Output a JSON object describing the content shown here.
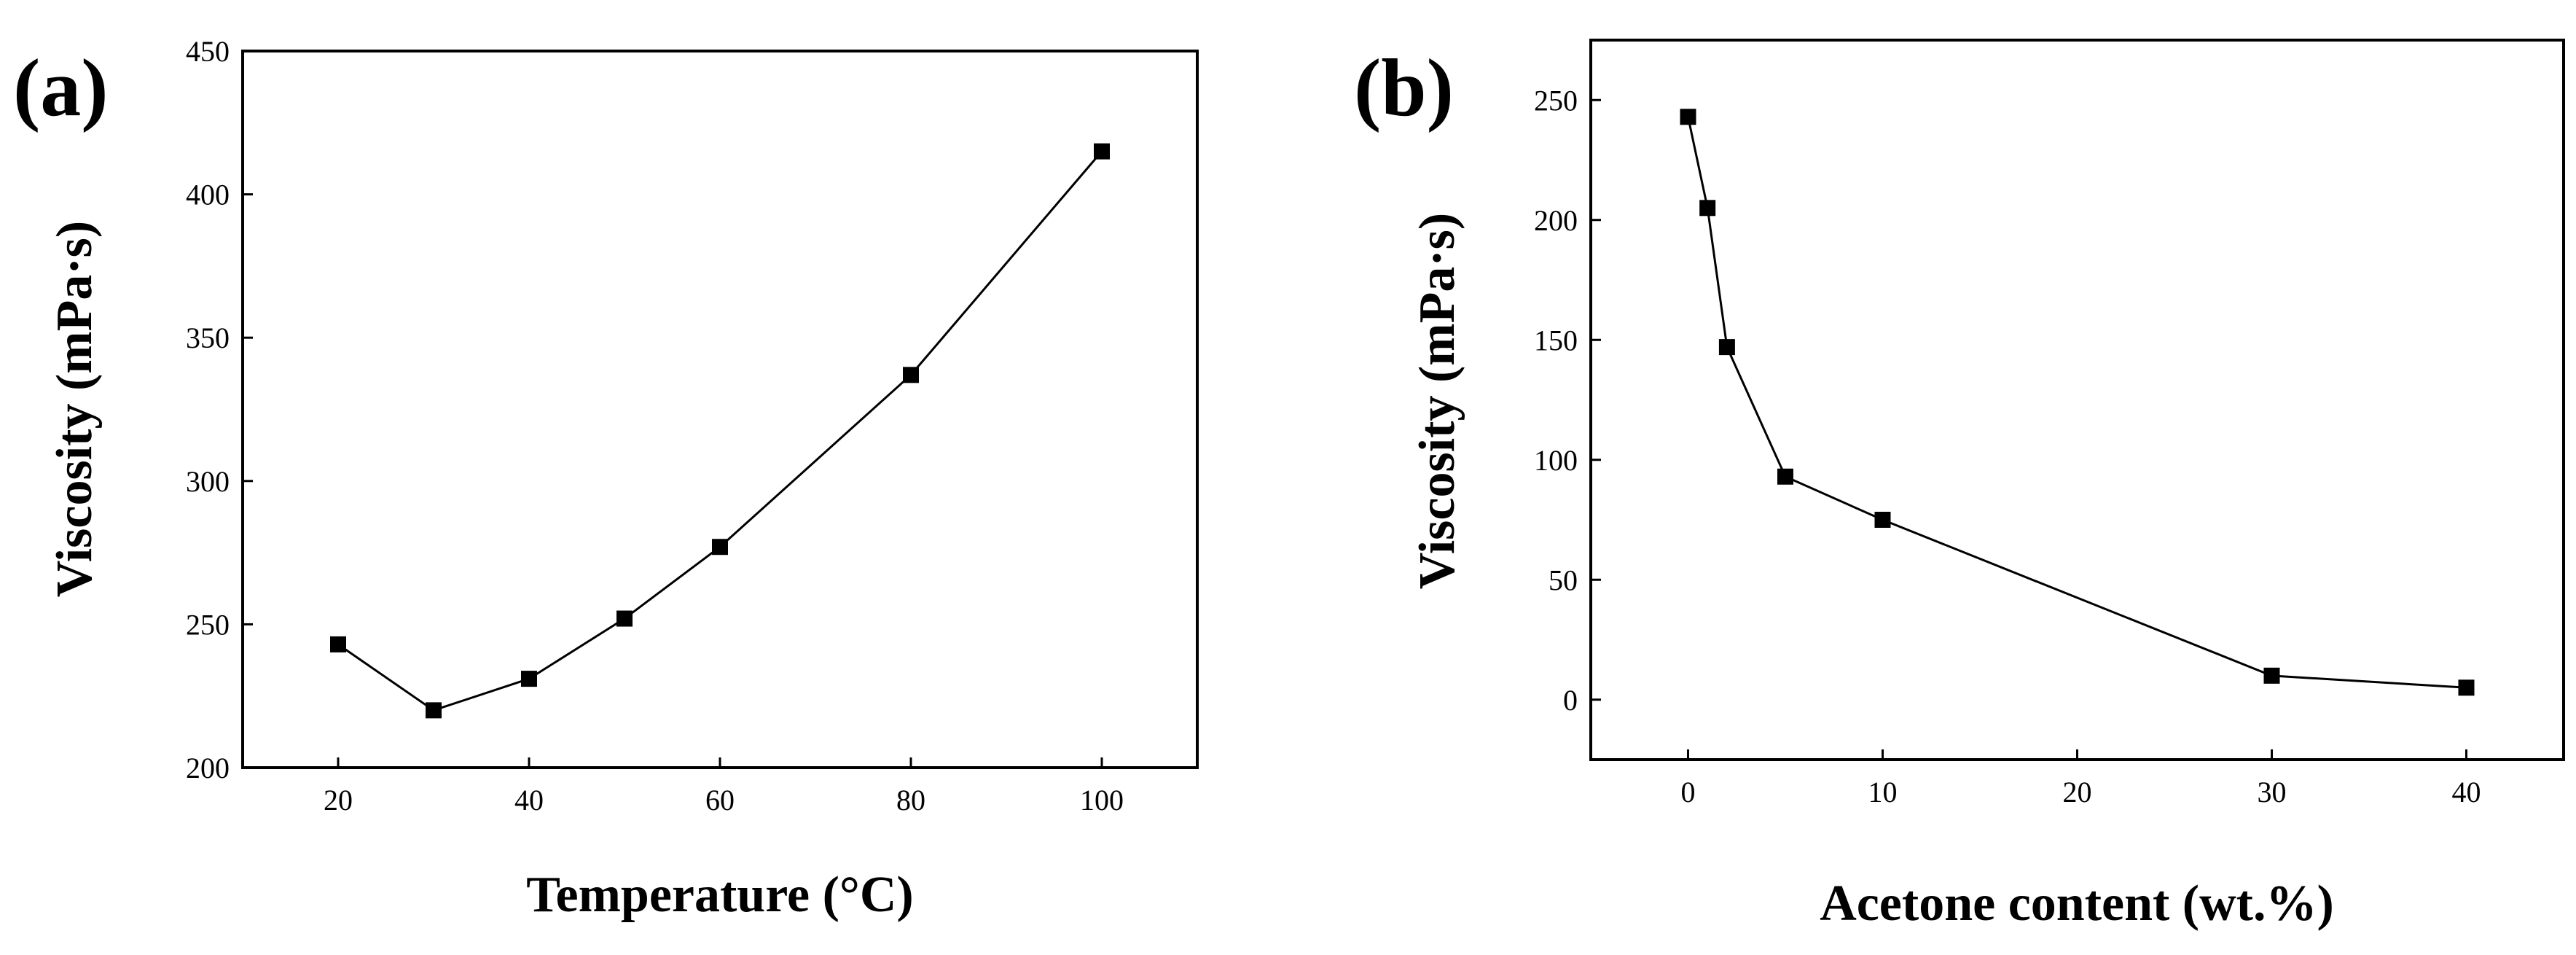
{
  "chart_data": [
    {
      "type": "line",
      "panel_label": "(a)",
      "title": "",
      "xlabel": "Temperature (°C)",
      "ylabel": "Viscosity (mPa·s)",
      "xlim": [
        10,
        110
      ],
      "ylim": [
        200,
        450
      ],
      "xticks": [
        20,
        40,
        60,
        80,
        100
      ],
      "yticks": [
        200,
        250,
        300,
        350,
        400,
        450
      ],
      "grid": false,
      "legend": "none",
      "marker": "square",
      "color": "#000000",
      "series": [
        {
          "name": "Viscosity",
          "x": [
            20,
            30,
            40,
            50,
            60,
            80,
            100
          ],
          "y": [
            243,
            220,
            231,
            252,
            277,
            337,
            415
          ]
        }
      ]
    },
    {
      "type": "line",
      "panel_label": "(b)",
      "title": "",
      "xlabel": "Acetone content (wt.%)",
      "ylabel": "Viscosity (mPa·s)",
      "xlim": [
        -5,
        45
      ],
      "ylim": [
        -25,
        275
      ],
      "xticks": [
        0,
        10,
        20,
        30,
        40
      ],
      "yticks": [
        0,
        50,
        100,
        150,
        200,
        250
      ],
      "grid": false,
      "legend": "none",
      "marker": "square",
      "color": "#000000",
      "series": [
        {
          "name": "Viscosity",
          "x": [
            0,
            1,
            2,
            5,
            10,
            30,
            40
          ],
          "y": [
            243,
            205,
            147,
            93,
            75,
            10,
            5
          ]
        }
      ]
    }
  ]
}
